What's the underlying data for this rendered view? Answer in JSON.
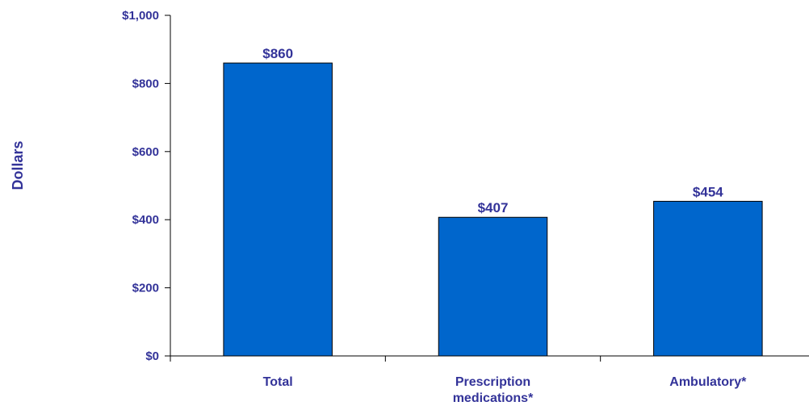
{
  "chart_data": {
    "type": "bar",
    "categories": [
      "Total",
      "Prescription medications*",
      "Ambulatory*"
    ],
    "category_lines": [
      [
        "Total"
      ],
      [
        "Prescription",
        "medications*"
      ],
      [
        "Ambulatory*"
      ]
    ],
    "values": [
      860,
      407,
      454
    ],
    "data_labels": [
      "$860",
      "$407",
      "$454"
    ],
    "ylabel": "Dollars",
    "xlabel": "",
    "title": "",
    "ylim": [
      0,
      1000
    ],
    "yticks": [
      0,
      200,
      400,
      600,
      800,
      1000
    ],
    "ytick_labels": [
      "$0",
      "$200",
      "$400",
      "$600",
      "$800",
      "$1,000"
    ],
    "grid": false,
    "legend": "none",
    "bar_color": "#0066CC",
    "text_color": "#333399"
  }
}
